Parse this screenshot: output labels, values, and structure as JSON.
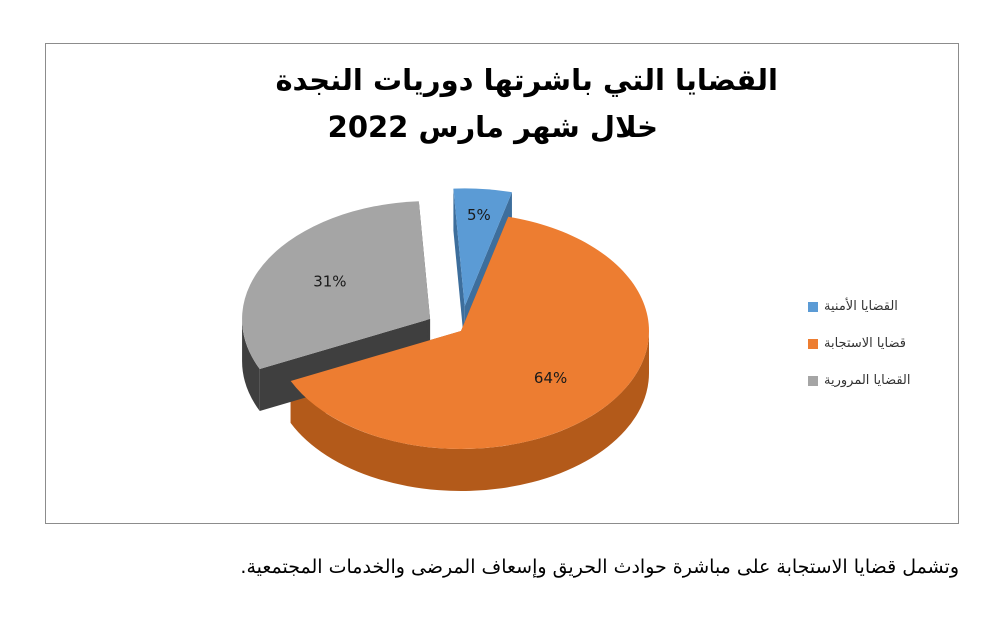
{
  "chart_data": {
    "type": "pie",
    "title": "القضايا التي باشرتها دوريات النجدة",
    "subtitle": "خلال شهر مارس 2022",
    "slices": [
      {
        "name": "القضايا الأمنية",
        "value": 5,
        "label": "5%",
        "color": "#5b9bd5",
        "side_color": "#3d6e9c"
      },
      {
        "name": "قضايا الاستجابة",
        "value": 64,
        "label": "64%",
        "color": "#ed7d31",
        "side_color": "#b35a1a"
      },
      {
        "name": "القضايا المرورية",
        "value": 31,
        "label": "31%",
        "color": "#a5a5a5",
        "side_color": "#3f3f3f"
      }
    ],
    "legend_position": "right",
    "style": "3d-exploded"
  },
  "footnote": "وتشمل قضايا الاستجابة على مباشرة حوادث الحريق وإسعاف المرضى والخدمات المجتمعية."
}
